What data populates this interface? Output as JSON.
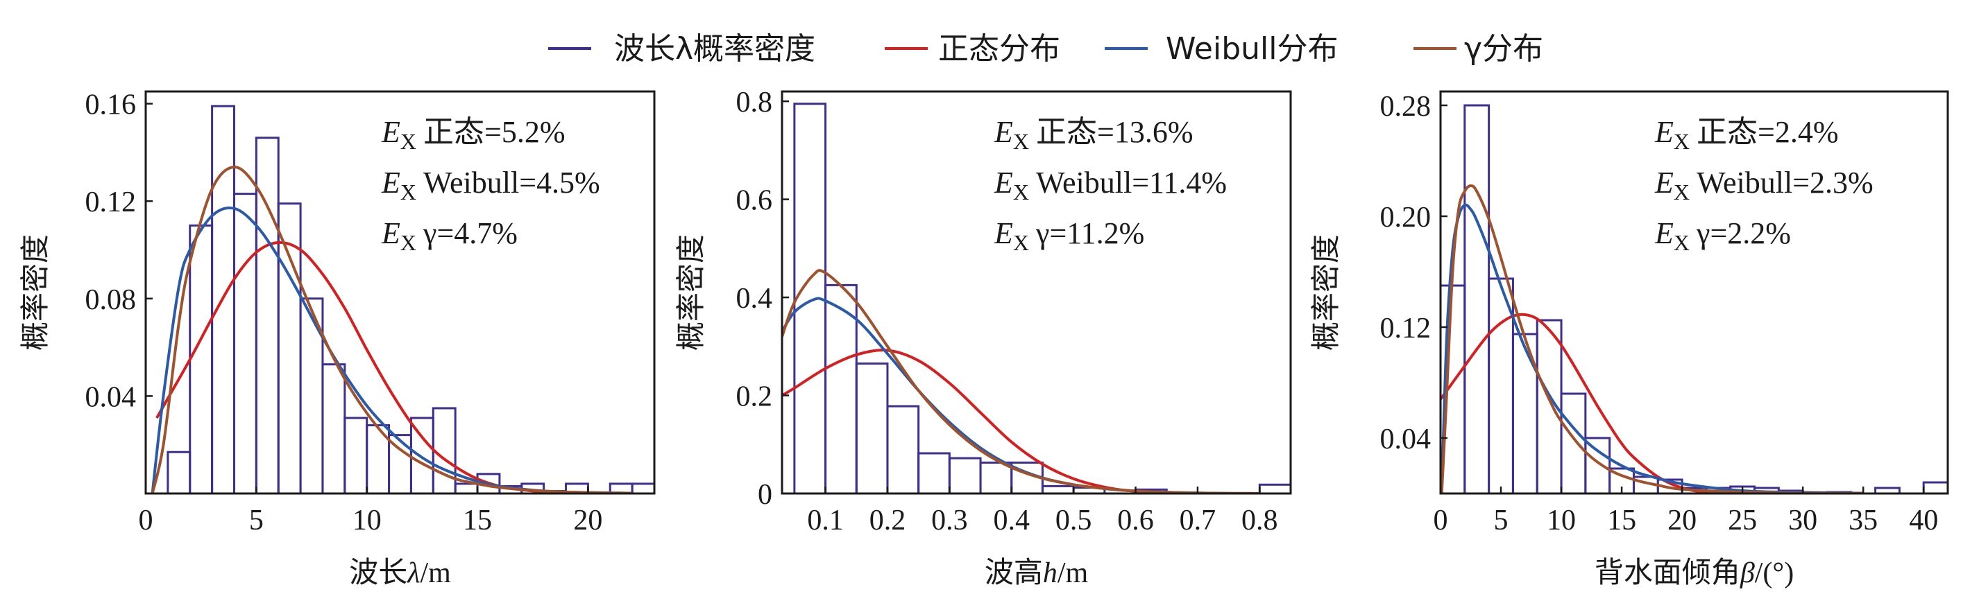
{
  "legend": {
    "items": [
      {
        "label": "波长λ概率密度",
        "color": "#3d2e8f"
      },
      {
        "label": "正态分布",
        "color": "#d62020"
      },
      {
        "label": "Weibull分布",
        "color": "#2a5aa8"
      },
      {
        "label": "γ分布",
        "color": "#a0522d"
      }
    ]
  },
  "colors": {
    "histogram": "#3d2e8f",
    "normal": "#d62020",
    "weibull": "#2a5aa8",
    "gamma": "#a0522d"
  },
  "chart_data": [
    {
      "type": "bar",
      "xlabel_prefix": "波长",
      "xlabel_var": "λ",
      "xlabel_suffix": "/m",
      "ylabel": "概率密度",
      "xlim": [
        0,
        23
      ],
      "ylim": [
        0,
        0.165
      ],
      "xticks": [
        0,
        5,
        10,
        15,
        20
      ],
      "xtick_labels": [
        "0",
        "5",
        "10",
        "15",
        "20"
      ],
      "yticks": [
        0.04,
        0.08,
        0.12,
        0.16
      ],
      "ytick_labels": [
        "0.04",
        "0.08",
        "0.12",
        "0.16"
      ],
      "annotations": [
        {
          "sub": "X",
          "label": "正态=5.2%"
        },
        {
          "sub": "X",
          "label": "Weibull=4.5%"
        },
        {
          "sub": "X",
          "label": "γ=4.7%"
        }
      ],
      "bins": {
        "start": 1,
        "width": 1,
        "values": [
          0.017,
          0.11,
          0.159,
          0.123,
          0.146,
          0.119,
          0.08,
          0.053,
          0.031,
          0.028,
          0.024,
          0.031,
          0.035,
          0.004,
          0.008,
          0.003,
          0.004,
          0.001,
          0.004,
          0.0,
          0.004,
          0.004
        ]
      },
      "series": [
        {
          "name": "正态分布",
          "x": [
            0.5,
            1,
            2,
            3,
            4,
            5,
            6,
            7,
            8,
            9,
            10,
            11,
            12,
            13,
            14,
            15,
            16,
            17,
            18,
            19,
            20
          ],
          "y": [
            0.031,
            0.039,
            0.055,
            0.072,
            0.088,
            0.099,
            0.103,
            0.1,
            0.09,
            0.076,
            0.059,
            0.043,
            0.029,
            0.018,
            0.011,
            0.006,
            0.003,
            0.0015,
            0.0007,
            0.0003,
            0.0001
          ]
        },
        {
          "name": "Weibull分布",
          "x": [
            0.3,
            0.8,
            1.5,
            2,
            3,
            4,
            5,
            6,
            7,
            8,
            9,
            10,
            11,
            12,
            13,
            14,
            15,
            16,
            18,
            20,
            22
          ],
          "y": [
            0.0,
            0.04,
            0.085,
            0.1,
            0.114,
            0.117,
            0.11,
            0.097,
            0.081,
            0.064,
            0.049,
            0.036,
            0.026,
            0.018,
            0.012,
            0.008,
            0.005,
            0.003,
            0.001,
            0.0004,
            0.0001
          ]
        },
        {
          "name": "γ分布",
          "x": [
            0.3,
            0.8,
            1.5,
            2,
            3,
            4,
            5,
            6,
            7,
            8,
            9,
            10,
            11,
            12,
            13,
            14,
            15,
            16,
            18,
            20,
            22
          ],
          "y": [
            0.0,
            0.02,
            0.07,
            0.095,
            0.125,
            0.134,
            0.126,
            0.108,
            0.086,
            0.065,
            0.047,
            0.033,
            0.022,
            0.015,
            0.01,
            0.006,
            0.004,
            0.0025,
            0.001,
            0.0004,
            0.0001
          ]
        }
      ]
    },
    {
      "type": "bar",
      "xlabel_prefix": "波高",
      "xlabel_var": "h",
      "xlabel_suffix": "/m",
      "ylabel": "概率密度",
      "xlim": [
        0.03,
        0.85
      ],
      "ylim": [
        0,
        0.82
      ],
      "xticks": [
        0.1,
        0.2,
        0.3,
        0.4,
        0.5,
        0.6,
        0.7,
        0.8
      ],
      "xtick_labels": [
        "0.1",
        "0.2",
        "0.3",
        "0.4",
        "0.5",
        "0.6",
        "0.7",
        "0.8"
      ],
      "yticks": [
        0,
        0.2,
        0.4,
        0.6,
        0.8
      ],
      "ytick_labels": [
        "0",
        "0.2",
        "0.4",
        "0.6",
        "0.8"
      ],
      "annotations": [
        {
          "sub": "X",
          "label": "正态=13.6%"
        },
        {
          "sub": "X",
          "label": "Weibull=11.4%"
        },
        {
          "sub": "X",
          "label": "γ=11.2%"
        }
      ],
      "bins": {
        "start": 0.05,
        "width": 0.05,
        "values": [
          0.795,
          0.425,
          0.265,
          0.178,
          0.082,
          0.072,
          0.063,
          0.063,
          0.015,
          0.012,
          0.0,
          0.008,
          0.0,
          0.0,
          0.0,
          0.018
        ]
      },
      "series": [
        {
          "name": "正态分布",
          "x": [
            0.03,
            0.05,
            0.1,
            0.15,
            0.2,
            0.25,
            0.3,
            0.35,
            0.4,
            0.45,
            0.5,
            0.55,
            0.6,
            0.7,
            0.8
          ],
          "y": [
            0.2,
            0.215,
            0.255,
            0.283,
            0.292,
            0.271,
            0.225,
            0.165,
            0.105,
            0.06,
            0.03,
            0.013,
            0.005,
            0.0005,
            0.0
          ]
        },
        {
          "name": "Weibull分布",
          "x": [
            0.03,
            0.05,
            0.08,
            0.1,
            0.15,
            0.2,
            0.25,
            0.3,
            0.35,
            0.4,
            0.45,
            0.5,
            0.55,
            0.6,
            0.7,
            0.8
          ],
          "y": [
            0.33,
            0.37,
            0.395,
            0.393,
            0.355,
            0.285,
            0.21,
            0.145,
            0.093,
            0.056,
            0.032,
            0.018,
            0.01,
            0.005,
            0.001,
            0.0
          ]
        },
        {
          "name": "γ分布",
          "x": [
            0.03,
            0.05,
            0.08,
            0.1,
            0.15,
            0.2,
            0.25,
            0.3,
            0.35,
            0.4,
            0.45,
            0.5,
            0.55,
            0.6,
            0.7,
            0.8
          ],
          "y": [
            0.32,
            0.39,
            0.445,
            0.45,
            0.39,
            0.3,
            0.21,
            0.14,
            0.088,
            0.053,
            0.031,
            0.018,
            0.01,
            0.005,
            0.001,
            0.0
          ]
        }
      ]
    },
    {
      "type": "bar",
      "xlabel_prefix": "背水面倾角",
      "xlabel_var": "β",
      "xlabel_suffix": "/(°)",
      "ylabel": "概率密度",
      "xlim": [
        0,
        42
      ],
      "ylim": [
        0,
        0.29
      ],
      "xticks": [
        0,
        5,
        10,
        15,
        20,
        25,
        30,
        35,
        40
      ],
      "xtick_labels": [
        "0",
        "5",
        "10",
        "15",
        "20",
        "25",
        "30",
        "35",
        "40"
      ],
      "yticks": [
        0.04,
        0.12,
        0.2,
        0.28
      ],
      "ytick_labels": [
        "0.04",
        "0.12",
        "0.20",
        "0.28"
      ],
      "annotations": [
        {
          "sub": "X",
          "label": "正态=2.4%"
        },
        {
          "sub": "X",
          "label": "Weibull=2.3%"
        },
        {
          "sub": "X",
          "label": "γ=2.2%"
        }
      ],
      "bins": {
        "start": 0,
        "width": 2,
        "values": [
          0.15,
          0.28,
          0.155,
          0.115,
          0.125,
          0.072,
          0.04,
          0.018,
          0.012,
          0.01,
          0.004,
          0.004,
          0.005,
          0.004,
          0.002,
          0.0,
          0.001,
          0.0,
          0.004,
          0.0,
          0.008
        ]
      },
      "series": [
        {
          "name": "正态分布",
          "x": [
            0,
            1,
            2,
            3,
            4,
            5,
            6,
            7,
            8,
            9,
            10,
            11,
            12,
            13,
            14,
            15,
            16,
            18,
            20,
            22,
            25
          ],
          "y": [
            0.068,
            0.08,
            0.092,
            0.104,
            0.115,
            0.123,
            0.128,
            0.129,
            0.126,
            0.118,
            0.107,
            0.093,
            0.078,
            0.063,
            0.049,
            0.036,
            0.026,
            0.012,
            0.004,
            0.001,
            0.0
          ]
        },
        {
          "name": "Weibull分布",
          "x": [
            0.1,
            0.5,
            1,
            1.5,
            2,
            2.5,
            3,
            4,
            5,
            6,
            7,
            8,
            9,
            10,
            12,
            14,
            16,
            18,
            20,
            25,
            30,
            35
          ],
          "y": [
            0.0,
            0.11,
            0.175,
            0.2,
            0.208,
            0.205,
            0.197,
            0.175,
            0.15,
            0.127,
            0.105,
            0.087,
            0.071,
            0.058,
            0.038,
            0.025,
            0.016,
            0.011,
            0.007,
            0.002,
            0.0008,
            0.0002
          ]
        },
        {
          "name": "γ分布",
          "x": [
            0.1,
            0.5,
            1,
            1.5,
            2,
            2.5,
            3,
            4,
            5,
            6,
            7,
            8,
            9,
            10,
            12,
            14,
            16,
            18,
            20,
            25,
            30,
            35
          ],
          "y": [
            0.0,
            0.07,
            0.16,
            0.205,
            0.218,
            0.222,
            0.218,
            0.198,
            0.17,
            0.14,
            0.112,
            0.088,
            0.068,
            0.052,
            0.03,
            0.017,
            0.01,
            0.006,
            0.003,
            0.001,
            0.0003,
            0.0001
          ]
        }
      ]
    }
  ]
}
